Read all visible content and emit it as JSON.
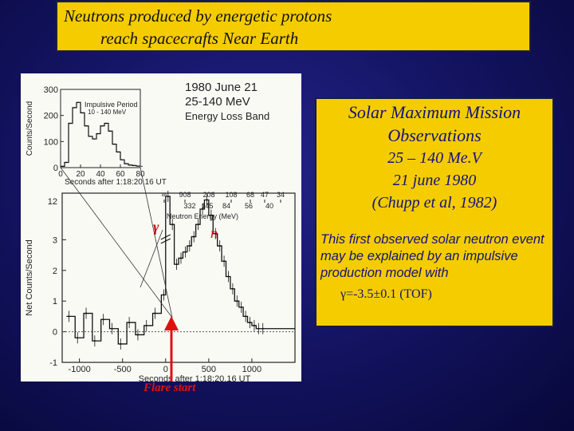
{
  "title": {
    "line1": "Neutrons produced by energetic protons",
    "line2": "reach spacecrafts Near Earth"
  },
  "info": {
    "mission": "Solar Maximum Mission",
    "observations": "Observations",
    "energy": "25 – 140 Me.V",
    "date": "21 june 1980",
    "reference": "(Chupp et al, 1982)",
    "description": "This first observed solar neutron event may be explained by an impulsive production model with",
    "gamma_fit": "γ=-3.5±0.1 (TOF)"
  },
  "figure_labels": {
    "gamma_symbol": "γ",
    "neutron_symbol": "n",
    "flare_start": "Flare start"
  },
  "colors": {
    "title_bg": "#f5cc00",
    "text_blue": "#12127a",
    "arrow_red": "#e01010"
  },
  "chart_data": [
    {
      "type": "line",
      "panel": "main",
      "header": [
        "1980 June 21",
        "25-140 MeV",
        "Energy Loss Band"
      ],
      "ylabel": "Net Counts/Second",
      "xlabel": "Seconds after 1:18:20.16 UT",
      "xlim": [
        -1200,
        1500
      ],
      "ylim": [
        -1,
        12
      ],
      "x_ticks": [
        -1000,
        -500,
        0,
        500,
        1000
      ],
      "y_ticks": [
        -1,
        0,
        1,
        2,
        3,
        12
      ],
      "y_tick_labels_partial": [
        "0",
        "1",
        "2",
        "3"
      ],
      "top_axis_label": "Neutron Energy (MeV)",
      "top_axis_ticks_row1": [
        "∞",
        "908",
        "208",
        "108",
        "68",
        "47",
        "34"
      ],
      "top_axis_ticks_row2": [
        "332",
        "145",
        "84",
        "56",
        "40"
      ],
      "x": [
        -1150,
        -1050,
        -950,
        -850,
        -750,
        -650,
        -550,
        -450,
        -350,
        -250,
        -150,
        -50,
        0,
        50,
        100,
        150,
        200,
        250,
        300,
        350,
        400,
        450,
        500,
        550,
        600,
        650,
        700,
        750,
        800,
        850,
        900,
        950,
        1000,
        1050,
        1100
      ],
      "y": [
        0.5,
        -0.2,
        0.6,
        -0.3,
        0.4,
        0.1,
        -0.4,
        0.3,
        -0.1,
        0.2,
        0.6,
        1.2,
        9.5,
        3.5,
        2.2,
        2.4,
        2.6,
        2.8,
        3.1,
        3.5,
        4.0,
        4.3,
        3.8,
        3.2,
        2.8,
        2.3,
        1.8,
        1.4,
        1.0,
        0.8,
        0.5,
        0.3,
        0.2,
        0.1,
        0.1
      ]
    },
    {
      "type": "line",
      "panel": "inset",
      "title": "Impulsive Period",
      "subtitle": "10 - 140 MeV",
      "ylabel": "Counts/Second",
      "xlabel": "Seconds after 1:18:20.16 UT",
      "xlim": [
        0,
        80
      ],
      "ylim": [
        0,
        300
      ],
      "x_ticks": [
        0,
        20,
        40,
        60,
        80
      ],
      "y_ticks": [
        0,
        100,
        200,
        300
      ],
      "x": [
        0,
        4,
        8,
        12,
        16,
        20,
        24,
        28,
        32,
        36,
        40,
        44,
        48,
        52,
        56,
        60,
        64,
        68,
        72,
        76,
        80
      ],
      "y": [
        5,
        20,
        170,
        230,
        250,
        210,
        160,
        120,
        110,
        130,
        160,
        170,
        140,
        90,
        60,
        30,
        15,
        10,
        8,
        6,
        5
      ]
    }
  ]
}
